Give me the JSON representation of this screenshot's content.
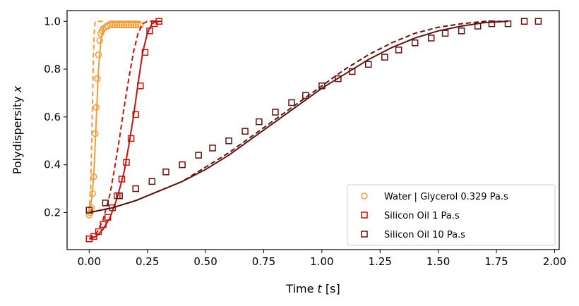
{
  "chart_data": {
    "type": "scatter",
    "title": "",
    "xlabel": "Time t [s]",
    "ylabel": "Polydispersity x",
    "xlim": [
      -0.095,
      2.02
    ],
    "ylim": [
      0.045,
      1.045
    ],
    "xticks": [
      0.0,
      0.25,
      0.5,
      0.75,
      1.0,
      1.25,
      1.5,
      1.75,
      2.0
    ],
    "xtick_labels": [
      "0.00",
      "0.25",
      "0.50",
      "0.75",
      "1.00",
      "1.25",
      "1.50",
      "1.75",
      "2.00"
    ],
    "yticks": [
      0.2,
      0.4,
      0.6,
      0.8,
      1.0
    ],
    "ytick_labels": [
      "0.2",
      "0.4",
      "0.6",
      "0.8",
      "1.0"
    ],
    "grid": false,
    "legend_position": "lower-right",
    "series": [
      {
        "name": "Water | Glycerol 0.329 Pa.s",
        "color": "#f39c3c",
        "marker": "circle",
        "points": [
          [
            0.0,
            0.19
          ],
          [
            0.005,
            0.2
          ],
          [
            0.01,
            0.22
          ],
          [
            0.015,
            0.28
          ],
          [
            0.02,
            0.35
          ],
          [
            0.025,
            0.53
          ],
          [
            0.03,
            0.64
          ],
          [
            0.035,
            0.76
          ],
          [
            0.04,
            0.86
          ],
          [
            0.045,
            0.92
          ],
          [
            0.05,
            0.95
          ],
          [
            0.055,
            0.96
          ],
          [
            0.06,
            0.97
          ],
          [
            0.07,
            0.975
          ],
          [
            0.08,
            0.98
          ],
          [
            0.09,
            0.985
          ],
          [
            0.1,
            0.985
          ],
          [
            0.11,
            0.985
          ],
          [
            0.12,
            0.985
          ],
          [
            0.13,
            0.985
          ],
          [
            0.14,
            0.985
          ],
          [
            0.15,
            0.985
          ],
          [
            0.16,
            0.985
          ],
          [
            0.17,
            0.985
          ],
          [
            0.18,
            0.985
          ],
          [
            0.19,
            0.985
          ],
          [
            0.2,
            0.985
          ],
          [
            0.21,
            0.985
          ],
          [
            0.22,
            0.985
          ]
        ],
        "fit_solid": [
          [
            0.0,
            0.2
          ],
          [
            0.01,
            0.25
          ],
          [
            0.02,
            0.36
          ],
          [
            0.03,
            0.58
          ],
          [
            0.04,
            0.8
          ],
          [
            0.05,
            0.92
          ],
          [
            0.06,
            0.97
          ],
          [
            0.07,
            0.99
          ],
          [
            0.09,
            1.0
          ],
          [
            0.15,
            1.0
          ],
          [
            0.22,
            1.0
          ]
        ],
        "fit_dashed": [
          [
            0.0,
            0.2
          ],
          [
            0.006,
            0.3
          ],
          [
            0.012,
            0.55
          ],
          [
            0.018,
            0.85
          ],
          [
            0.022,
            0.96
          ],
          [
            0.026,
            1.0
          ],
          [
            0.05,
            1.0
          ],
          [
            0.06,
            1.0
          ]
        ]
      },
      {
        "name": "Silicon Oil 1 Pa.s",
        "color": "#c0140c",
        "marker": "square",
        "points": [
          [
            0.0,
            0.09
          ],
          [
            0.02,
            0.1
          ],
          [
            0.04,
            0.12
          ],
          [
            0.06,
            0.15
          ],
          [
            0.08,
            0.18
          ],
          [
            0.1,
            0.22
          ],
          [
            0.12,
            0.27
          ],
          [
            0.14,
            0.34
          ],
          [
            0.16,
            0.41
          ],
          [
            0.18,
            0.51
          ],
          [
            0.2,
            0.61
          ],
          [
            0.22,
            0.73
          ],
          [
            0.24,
            0.87
          ],
          [
            0.26,
            0.96
          ],
          [
            0.28,
            0.99
          ],
          [
            0.3,
            1.0
          ]
        ],
        "fit_solid": [
          [
            0.0,
            0.09
          ],
          [
            0.03,
            0.1
          ],
          [
            0.06,
            0.13
          ],
          [
            0.09,
            0.18
          ],
          [
            0.12,
            0.26
          ],
          [
            0.15,
            0.37
          ],
          [
            0.17,
            0.48
          ],
          [
            0.19,
            0.6
          ],
          [
            0.21,
            0.74
          ],
          [
            0.23,
            0.87
          ],
          [
            0.25,
            0.95
          ],
          [
            0.27,
            0.99
          ],
          [
            0.29,
            1.0
          ],
          [
            0.31,
            1.0
          ]
        ],
        "fit_dashed": [
          [
            0.0,
            0.09
          ],
          [
            0.03,
            0.11
          ],
          [
            0.06,
            0.17
          ],
          [
            0.09,
            0.28
          ],
          [
            0.11,
            0.39
          ],
          [
            0.13,
            0.51
          ],
          [
            0.15,
            0.64
          ],
          [
            0.17,
            0.76
          ],
          [
            0.19,
            0.87
          ],
          [
            0.21,
            0.95
          ],
          [
            0.23,
            0.99
          ],
          [
            0.25,
            1.0
          ],
          [
            0.3,
            1.0
          ]
        ]
      },
      {
        "name": "Silicon Oil 10 Pa.s",
        "color": "#5e1410",
        "marker": "square",
        "points": [
          [
            0.0,
            0.21
          ],
          [
            0.07,
            0.24
          ],
          [
            0.13,
            0.27
          ],
          [
            0.2,
            0.3
          ],
          [
            0.27,
            0.33
          ],
          [
            0.33,
            0.37
          ],
          [
            0.4,
            0.4
          ],
          [
            0.47,
            0.44
          ],
          [
            0.53,
            0.47
          ],
          [
            0.6,
            0.5
          ],
          [
            0.67,
            0.54
          ],
          [
            0.73,
            0.58
          ],
          [
            0.8,
            0.62
          ],
          [
            0.87,
            0.66
          ],
          [
            0.93,
            0.69
          ],
          [
            1.0,
            0.73
          ],
          [
            1.07,
            0.76
          ],
          [
            1.13,
            0.79
          ],
          [
            1.2,
            0.82
          ],
          [
            1.27,
            0.85
          ],
          [
            1.33,
            0.88
          ],
          [
            1.4,
            0.91
          ],
          [
            1.47,
            0.93
          ],
          [
            1.53,
            0.95
          ],
          [
            1.6,
            0.96
          ],
          [
            1.67,
            0.98
          ],
          [
            1.73,
            0.99
          ],
          [
            1.8,
            0.99
          ],
          [
            1.87,
            1.0
          ],
          [
            1.93,
            1.0
          ]
        ],
        "fit_solid": [
          [
            0.0,
            0.2
          ],
          [
            0.1,
            0.22
          ],
          [
            0.2,
            0.25
          ],
          [
            0.3,
            0.29
          ],
          [
            0.4,
            0.33
          ],
          [
            0.5,
            0.38
          ],
          [
            0.6,
            0.44
          ],
          [
            0.7,
            0.51
          ],
          [
            0.8,
            0.58
          ],
          [
            0.9,
            0.65
          ],
          [
            1.0,
            0.72
          ],
          [
            1.1,
            0.78
          ],
          [
            1.2,
            0.84
          ],
          [
            1.3,
            0.89
          ],
          [
            1.4,
            0.93
          ],
          [
            1.5,
            0.96
          ],
          [
            1.6,
            0.98
          ],
          [
            1.7,
            0.995
          ],
          [
            1.8,
            1.0
          ]
        ],
        "fit_dashed": [
          [
            0.0,
            0.2
          ],
          [
            0.1,
            0.22
          ],
          [
            0.2,
            0.25
          ],
          [
            0.3,
            0.29
          ],
          [
            0.4,
            0.33
          ],
          [
            0.5,
            0.39
          ],
          [
            0.6,
            0.45
          ],
          [
            0.7,
            0.52
          ],
          [
            0.8,
            0.59
          ],
          [
            0.9,
            0.66
          ],
          [
            1.0,
            0.73
          ],
          [
            1.1,
            0.8
          ],
          [
            1.2,
            0.86
          ],
          [
            1.3,
            0.91
          ],
          [
            1.4,
            0.95
          ],
          [
            1.5,
            0.975
          ],
          [
            1.6,
            0.99
          ],
          [
            1.7,
            1.0
          ],
          [
            1.8,
            1.0
          ]
        ]
      }
    ]
  }
}
